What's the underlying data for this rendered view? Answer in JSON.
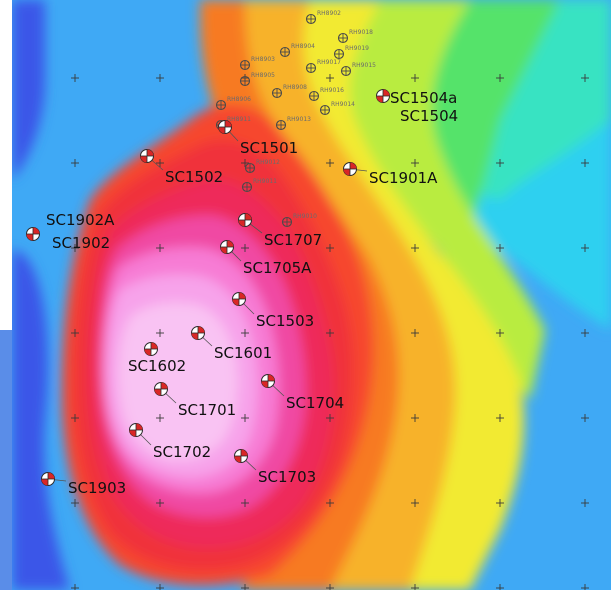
{
  "map": {
    "colors": {
      "page_background": "#ffffff",
      "deep_blue": "#3a57e8",
      "blue": "#4b8bf0",
      "light_blue": "#3fa9f5",
      "cyan": "#2fd0f0",
      "aqua": "#39e3c2",
      "green": "#55e36a",
      "yellow_green": "#b9ec3f",
      "yellow": "#f2ea32",
      "orange": "#f7b22c",
      "dark_orange": "#f77a22",
      "red_orange": "#f6472f",
      "red": "#f0323a",
      "crimson": "#ee2c5a",
      "magenta": "#f04aa3",
      "pink": "#f77cd4",
      "light_pink": "#f7a3ea",
      "pale_pink": "#f9c3f3"
    },
    "well_symbol": {
      "fill_red": "#d92626",
      "outline": "#2b2b2b",
      "icon_name": "drill-hole-icon"
    },
    "rh_symbol": {
      "icon_name": "grid-target-icon",
      "outline": "#4a4a4a"
    },
    "grid_cross_icon": "cross-icon"
  },
  "wells": [
    {
      "id": "SC1504a",
      "label": "SC1504a"
    },
    {
      "id": "SC1504",
      "label": "SC1504"
    },
    {
      "id": "SC1501",
      "label": "SC1501"
    },
    {
      "id": "SC1502",
      "label": "SC1502"
    },
    {
      "id": "SC1901A",
      "label": "SC1901A"
    },
    {
      "id": "SC1902A",
      "label": "SC1902A"
    },
    {
      "id": "SC1902",
      "label": "SC1902"
    },
    {
      "id": "SC1707",
      "label": "SC1707"
    },
    {
      "id": "SC1705A",
      "label": "SC1705A"
    },
    {
      "id": "SC1503",
      "label": "SC1503"
    },
    {
      "id": "SC1601",
      "label": "SC1601"
    },
    {
      "id": "SC1602",
      "label": "SC1602"
    },
    {
      "id": "SC1704",
      "label": "SC1704"
    },
    {
      "id": "SC1701",
      "label": "SC1701"
    },
    {
      "id": "SC1702",
      "label": "SC1702"
    },
    {
      "id": "SC1703",
      "label": "SC1703"
    },
    {
      "id": "SC1903",
      "label": "SC1903"
    }
  ],
  "rh_points": [
    {
      "label": "RH8902"
    },
    {
      "label": "RH9018"
    },
    {
      "label": "RH9019"
    },
    {
      "label": "RH8904"
    },
    {
      "label": "RH8903"
    },
    {
      "label": "RH9017"
    },
    {
      "label": "RH8908"
    },
    {
      "label": "RH9015"
    },
    {
      "label": "RH9016"
    },
    {
      "label": "RH8905"
    },
    {
      "label": "RH8906"
    },
    {
      "label": "RH9014"
    },
    {
      "label": "RH8911"
    },
    {
      "label": "RH9013"
    },
    {
      "label": "RH9012"
    },
    {
      "label": "RH9011"
    },
    {
      "label": "RH9010"
    }
  ]
}
